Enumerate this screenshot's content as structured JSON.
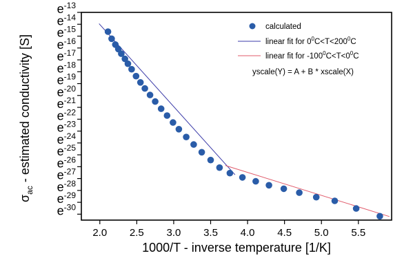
{
  "chart_data": {
    "type": "scatter",
    "xlabel": "1000/T - inverse temperature [1/K]",
    "ylabel": {
      "sym": "σ",
      "sub": "ac",
      "rest": " - estimated conductivity   [S]"
    },
    "xlim": [
      1.75,
      5.95
    ],
    "ylim": [
      -30.5,
      -13
    ],
    "y_scale": "log-e",
    "x_ticks": [
      2.0,
      2.5,
      3.0,
      3.5,
      4.0,
      4.5,
      5.0,
      5.5
    ],
    "x_tick_labels": [
      "2.0",
      "2.5",
      "3.0",
      "3.5",
      "4.0",
      "4.5",
      "5.0",
      "5.5"
    ],
    "y_ticks": [
      -13,
      -14,
      -15,
      -16,
      -17,
      -18,
      -19,
      -20,
      -21,
      -22,
      -23,
      -24,
      -25,
      -26,
      -27,
      -28,
      -29,
      -30
    ],
    "y_tick_labels": [
      {
        "base": "e",
        "exp": "-13"
      },
      {
        "base": "e",
        "exp": "-14"
      },
      {
        "base": "e",
        "exp": "-15"
      },
      {
        "base": "e",
        "exp": "-16"
      },
      {
        "base": "e",
        "exp": "-17"
      },
      {
        "base": "e",
        "exp": "-18"
      },
      {
        "base": "e",
        "exp": "-19"
      },
      {
        "base": "e",
        "exp": "-20"
      },
      {
        "base": "e",
        "exp": "-21"
      },
      {
        "base": "e",
        "exp": "-22"
      },
      {
        "base": "e",
        "exp": "-23"
      },
      {
        "base": "e",
        "exp": "-24"
      },
      {
        "base": "e",
        "exp": "-25"
      },
      {
        "base": "e",
        "exp": "-26"
      },
      {
        "base": "e",
        "exp": "-27"
      },
      {
        "base": "e",
        "exp": "-28"
      },
      {
        "base": "e",
        "exp": "-29"
      },
      {
        "base": "e",
        "exp": "-30"
      }
    ],
    "grid": false,
    "legend_position": "top-right",
    "series": [
      {
        "name": "calculated",
        "kind": "points",
        "color": "#2a5ca8",
        "x": [
          2.11,
          2.16,
          2.21,
          2.25,
          2.29,
          2.34,
          2.38,
          2.43,
          2.49,
          2.55,
          2.61,
          2.68,
          2.75,
          2.83,
          2.91,
          2.99,
          3.07,
          3.17,
          3.27,
          3.38,
          3.5,
          3.62,
          3.76,
          3.93,
          4.11,
          4.29,
          4.49,
          4.7,
          4.93,
          5.18,
          5.47,
          5.79
        ],
        "y": [
          -14.62,
          -15.22,
          -15.71,
          -16.09,
          -16.48,
          -16.92,
          -17.33,
          -17.79,
          -18.37,
          -18.9,
          -19.41,
          -19.96,
          -20.51,
          -21.12,
          -21.69,
          -22.28,
          -22.84,
          -23.5,
          -24.13,
          -24.78,
          -25.44,
          -26.08,
          -26.54,
          -26.9,
          -27.23,
          -27.56,
          -27.86,
          -28.19,
          -28.57,
          -28.88,
          -29.52,
          -30.17
        ]
      },
      {
        "name": "linear fit for  0⁰C<T<200⁰C",
        "legend": {
          "pre": "linear fit for  0",
          "sup1": "0",
          "mid": "C<T<200",
          "sup2": "0",
          "post": "C"
        },
        "kind": "line",
        "color": "#3a3aa8",
        "x": [
          1.99,
          3.83
        ],
        "y": [
          -13.95,
          -26.68
        ]
      },
      {
        "name": "linear fit for -100⁰C<T<0⁰C",
        "legend": {
          "pre": "linear fit for -100",
          "sup1": "0",
          "mid": "C<T<0",
          "sup2": "0",
          "post": "C"
        },
        "kind": "line",
        "color": "#e05a6a",
        "x": [
          3.7,
          5.92
        ],
        "y": [
          -25.9,
          -30.2
        ]
      }
    ],
    "annotation": "yscale(Y) = A + B * xscale(X)"
  }
}
